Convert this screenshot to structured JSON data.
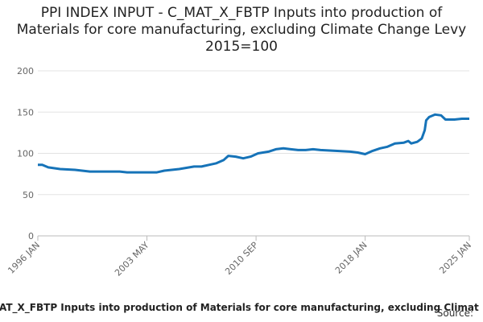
{
  "chart_data": {
    "type": "line",
    "title": "PPI INDEX INPUT - C_MAT_X_FBTP Inputs into production of Materials for core manufacturing, excluding Climate Change Levy 2015=100",
    "x_label": "AT_X_FBTP Inputs into production of Materials for core manufacturing, excluding Climat",
    "source": "Source:",
    "color": "#1673b8",
    "grid": true,
    "xlim": [
      1996,
      2025
    ],
    "xticks": [
      {
        "value": 1996,
        "label": "1996 JAN"
      },
      {
        "value": 2003.333,
        "label": "2003 MAY"
      },
      {
        "value": 2010.667,
        "label": "2010 SEP"
      },
      {
        "value": 2018,
        "label": "2018 JAN"
      },
      {
        "value": 2025,
        "label": "2025 JAN"
      }
    ],
    "ylim": [
      0,
      200
    ],
    "yticks": [
      0,
      50,
      100,
      150,
      200
    ],
    "x": [
      1996.0,
      1996.3,
      1996.7,
      1997.5,
      1998.5,
      1999.5,
      2000.5,
      2001.5,
      2002.0,
      2003.0,
      2004.0,
      2004.5,
      2005.5,
      2006.5,
      2007.0,
      2007.5,
      2008.0,
      2008.5,
      2008.8,
      2009.3,
      2009.8,
      2010.3,
      2010.8,
      2011.5,
      2012.0,
      2012.5,
      2013.0,
      2013.5,
      2014.0,
      2014.5,
      2015.0,
      2016.0,
      2017.0,
      2017.5,
      2018.0,
      2018.5,
      2019.0,
      2019.5,
      2020.0,
      2020.6,
      2020.9,
      2021.1,
      2021.5,
      2021.8,
      2022.0,
      2022.1,
      2022.3,
      2022.7,
      2023.1,
      2023.4,
      2024.0,
      2024.5,
      2025.0
    ],
    "values": [
      86,
      86,
      83,
      81,
      80,
      78,
      78,
      78,
      77,
      77,
      77,
      79,
      81,
      84,
      84,
      86,
      88,
      92,
      97,
      96,
      94,
      96,
      100,
      102,
      105,
      106,
      105,
      104,
      104,
      105,
      104,
      103,
      102,
      101,
      99,
      103,
      106,
      108,
      112,
      113,
      115,
      112,
      114,
      118,
      128,
      140,
      144,
      147,
      146,
      141,
      141,
      142,
      142
    ]
  }
}
